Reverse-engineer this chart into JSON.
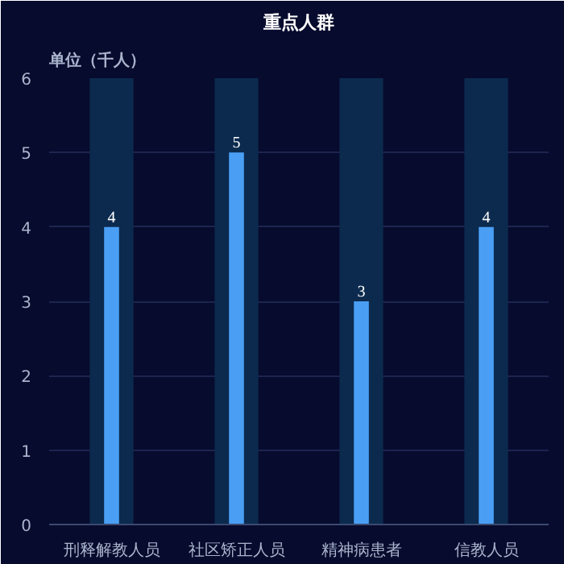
{
  "chart_data": {
    "type": "bar",
    "title": "重点人群",
    "ylabel": "单位（千人）",
    "categories": [
      "刑释解教人员",
      "社区矫正人员",
      "精神病患者",
      "信教人员"
    ],
    "series": [
      {
        "color": "#0c2a4e",
        "values": [
          6,
          6,
          6,
          6
        ],
        "value_labels": [
          null,
          null,
          null,
          null
        ]
      },
      {
        "color": "#4a9ff5",
        "values": [
          4,
          5,
          3,
          4
        ],
        "value_labels": [
          "4",
          "5",
          "3",
          "4"
        ]
      }
    ],
    "ylim": [
      0,
      6
    ],
    "yticks": [
      0,
      1,
      2,
      3,
      4,
      5,
      6
    ],
    "grid": "y"
  }
}
